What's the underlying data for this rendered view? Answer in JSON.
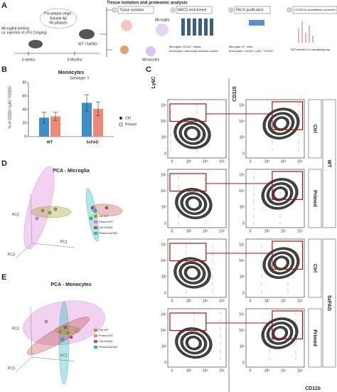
{
  "panel_labels": [
    "A",
    "B",
    "C",
    "D",
    "E"
  ],
  "panel_a": {
    "priming": [
      "Microglial priming",
      "i.p. injection of LPS (1mg/kg)"
    ],
    "bubble": [
      "Pre-plaque stage:",
      "Soluble Aβ",
      "No plaques"
    ],
    "age_start": "6 weeks",
    "genotype": "WT / 5xFAD",
    "age_end": "6 Months",
    "section_title": "Tissue isolation and proteomic analysis",
    "steps": [
      "Tissue isolation",
      "MACS enrichment",
      "FACS purification",
      "LC/MS for quantitative proteomic analysis"
    ],
    "step_numbers": [
      "1",
      "2",
      "3",
      "4"
    ],
    "cells": [
      "Microglia",
      "Monocytes"
    ],
    "macs_notes": [
      "Microglia: CD11b⁺ beads",
      "Monocytes: Monocytic selection beads"
    ],
    "facs_notes": [
      "Microglia: PI⁻ cells",
      "Monocytes: CD11b⁺ Ly6C⁺ CD115⁺"
    ],
    "ms_note": "TMT labeled 3-4 samples/group"
  },
  "chart_data": {
    "type": "bar",
    "title": "Monocytes",
    "subtitle": "Genotype: #",
    "y_label": "% of CD11b⁺Ly6C⁺CD115⁺",
    "categories": [
      "WT",
      "5xFAD"
    ],
    "series": [
      {
        "name": "Ctrl",
        "color": "#3d8fc6",
        "values": [
          28,
          50
        ],
        "errors": [
          8,
          12
        ]
      },
      {
        "name": "Primed",
        "color": "#f08877",
        "values": [
          30,
          41
        ],
        "errors": [
          6,
          10
        ]
      }
    ],
    "ylim": [
      0,
      80
    ],
    "yticks": [
      0,
      20,
      40,
      60,
      80
    ]
  },
  "panel_c": {
    "y_label_left": "Ly6C",
    "y_label_right": "CD115",
    "x_label": "CD11b",
    "yticks": [
      "10⁵",
      "10⁴",
      "10³",
      "0"
    ],
    "xticks": [
      "0",
      "10³",
      "10⁴",
      "10⁵"
    ],
    "conditions": [
      "Ctrl",
      "Primed",
      "Ctrl",
      "Primed"
    ],
    "genotypes": [
      "WT",
      "5xFAD"
    ]
  },
  "panel_d": {
    "title": "PCA - Microglia",
    "axes": [
      "PC1",
      "PC2",
      "PC3"
    ]
  },
  "panel_e": {
    "title": "PCA - Monocytes",
    "axes": [
      "PC1",
      "PC2",
      "PC3"
    ]
  },
  "pca_legend": [
    {
      "name": "Ctrl-WT",
      "color": "#9c9b2c"
    },
    {
      "name": "Primed-WT",
      "color": "#d77fd6"
    },
    {
      "name": "Ctrl-5xFAD",
      "color": "#c0504d"
    },
    {
      "name": "Primed-5xFAD",
      "color": "#2cb6b4"
    }
  ]
}
